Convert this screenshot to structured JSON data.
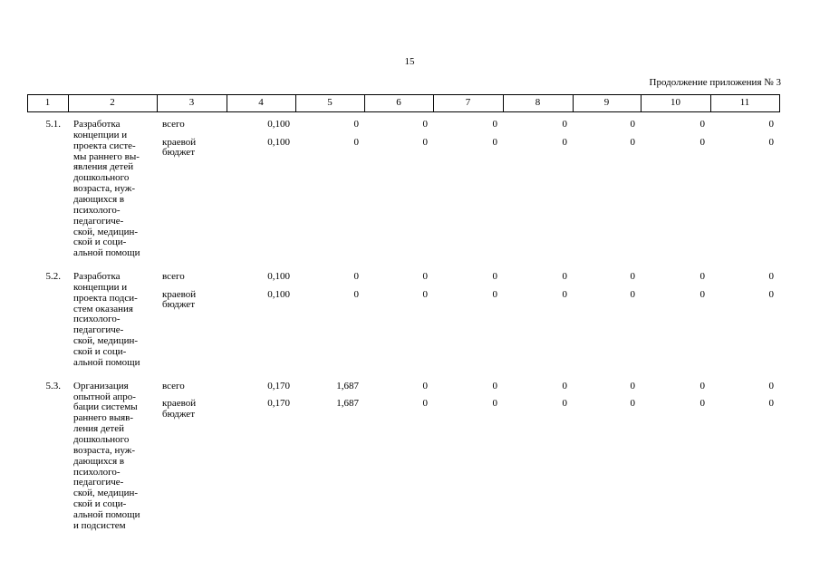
{
  "page_number": "15",
  "caption": "Продолжение приложения № 3",
  "table": {
    "header": [
      "1",
      "2",
      "3",
      "4",
      "5",
      "6",
      "7",
      "8",
      "9",
      "10",
      "11"
    ],
    "rows": [
      {
        "number": "5.1.",
        "name": [
          "Разработка",
          "концепции и",
          "проекта систе-",
          "мы раннего вы-",
          "явления детей",
          "дошкольного",
          "возраста, нуж-",
          "дающихся в",
          "психолого-",
          "педагогиче-",
          "ской, медицин-",
          "ской и соци-",
          "альной помощи"
        ],
        "sources": [
          {
            "label": [
              "всего"
            ],
            "values": [
              "0,100",
              "0",
              "0",
              "0",
              "0",
              "0",
              "0",
              "0"
            ]
          },
          {
            "label": [
              "краевой",
              "бюджет"
            ],
            "values": [
              "0,100",
              "0",
              "0",
              "0",
              "0",
              "0",
              "0",
              "0"
            ]
          }
        ]
      },
      {
        "number": "5.2.",
        "name": [
          "Разработка",
          "концепции и",
          "проекта подси-",
          "стем оказания",
          "психолого-",
          "педагогиче-",
          "ской, медицин-",
          "ской и соци-",
          "альной помощи"
        ],
        "sources": [
          {
            "label": [
              "всего"
            ],
            "values": [
              "0,100",
              "0",
              "0",
              "0",
              "0",
              "0",
              "0",
              "0"
            ]
          },
          {
            "label": [
              "краевой",
              "бюджет"
            ],
            "values": [
              "0,100",
              "0",
              "0",
              "0",
              "0",
              "0",
              "0",
              "0"
            ]
          }
        ]
      },
      {
        "number": "5.3.",
        "name": [
          "Организация",
          "опытной апро-",
          "бации системы",
          "раннего выяв-",
          "ления детей",
          "дошкольного",
          "возраста, нуж-",
          "дающихся в",
          "психолого-",
          "педагогиче-",
          "ской, медицин-",
          "ской и соци-",
          "альной помощи",
          "и подсистем"
        ],
        "sources": [
          {
            "label": [
              "всего"
            ],
            "values": [
              "0,170",
              "1,687",
              "0",
              "0",
              "0",
              "0",
              "0",
              "0"
            ]
          },
          {
            "label": [
              "краевой",
              "бюджет"
            ],
            "values": [
              "0,170",
              "1,687",
              "0",
              "0",
              "0",
              "0",
              "0",
              "0"
            ]
          }
        ]
      }
    ]
  }
}
